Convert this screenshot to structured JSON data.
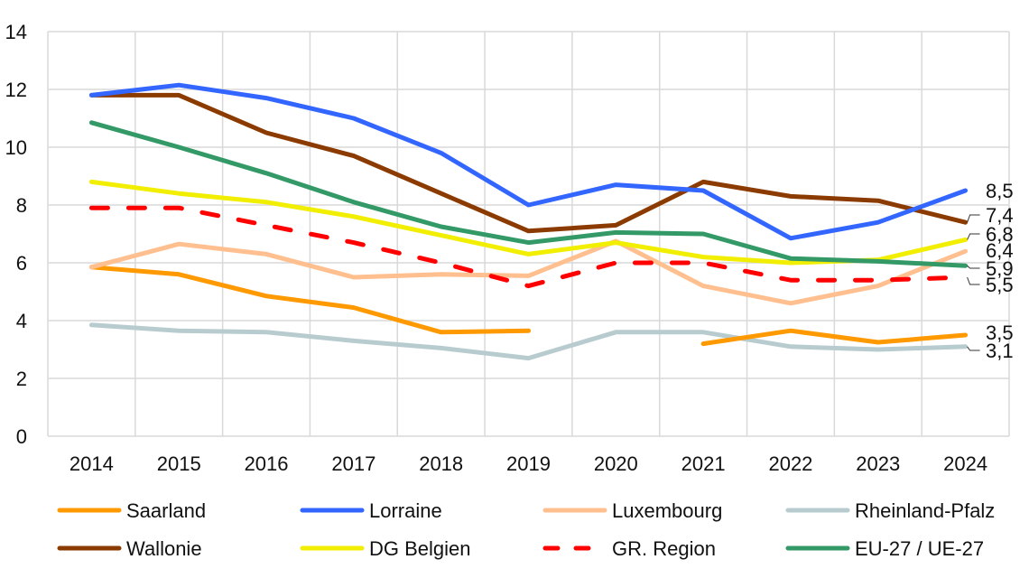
{
  "chart_data": {
    "type": "line",
    "title": "",
    "xlabel": "",
    "ylabel": "",
    "x": [
      "2014",
      "2015",
      "2016",
      "2017",
      "2018",
      "2019",
      "2020",
      "2021",
      "2022",
      "2023",
      "2024"
    ],
    "ylim": [
      0,
      14
    ],
    "yticks": [
      "0",
      "2",
      "4",
      "6",
      "8",
      "10",
      "12",
      "14"
    ],
    "grid": true,
    "legend_position": "bottom",
    "series": [
      {
        "name": "Saarland",
        "color": "#FF9900",
        "dashed": false,
        "values": [
          5.85,
          5.6,
          4.85,
          4.45,
          3.6,
          3.65,
          null,
          3.2,
          3.65,
          3.25,
          3.5
        ],
        "end_label": "3,5"
      },
      {
        "name": "Lorraine",
        "color": "#3366FF",
        "dashed": false,
        "values": [
          11.8,
          12.15,
          11.7,
          11.0,
          9.8,
          8.0,
          8.7,
          8.5,
          6.85,
          7.4,
          8.5
        ],
        "end_label": "8,5"
      },
      {
        "name": "Luxembourg",
        "color": "#FFBF8F",
        "dashed": false,
        "values": [
          5.85,
          6.65,
          6.3,
          5.5,
          5.6,
          5.55,
          6.75,
          5.2,
          4.6,
          5.2,
          6.4
        ],
        "end_label": "6,4"
      },
      {
        "name": "Rheinland-Pfalz",
        "color": "#B8CCD0",
        "dashed": false,
        "values": [
          3.85,
          3.65,
          3.6,
          3.3,
          3.05,
          2.7,
          3.6,
          3.6,
          3.1,
          3.0,
          3.1
        ],
        "end_label": "3,1"
      },
      {
        "name": "Wallonie",
        "color": "#8B3A00",
        "dashed": false,
        "values": [
          11.8,
          11.8,
          10.5,
          9.7,
          8.4,
          7.1,
          7.3,
          8.8,
          8.3,
          8.15,
          7.4
        ],
        "end_label": "7,4"
      },
      {
        "name": "DG Belgien",
        "color": "#F2EE00",
        "dashed": false,
        "values": [
          8.8,
          8.4,
          8.1,
          7.6,
          6.95,
          6.3,
          6.7,
          6.2,
          6.0,
          6.1,
          6.8
        ],
        "end_label": "6,8"
      },
      {
        "name": "GR. Region",
        "color": "#FF0000",
        "dashed": true,
        "values": [
          7.9,
          7.9,
          7.3,
          6.7,
          6.0,
          5.2,
          6.0,
          6.0,
          5.4,
          5.4,
          5.5
        ],
        "end_label": "5,5"
      },
      {
        "name": "EU-27 / UE-27",
        "color": "#339966",
        "dashed": false,
        "values": [
          10.85,
          10.0,
          9.1,
          8.1,
          7.25,
          6.7,
          7.05,
          7.0,
          6.15,
          6.05,
          5.9
        ],
        "end_label": "5,9"
      }
    ]
  }
}
